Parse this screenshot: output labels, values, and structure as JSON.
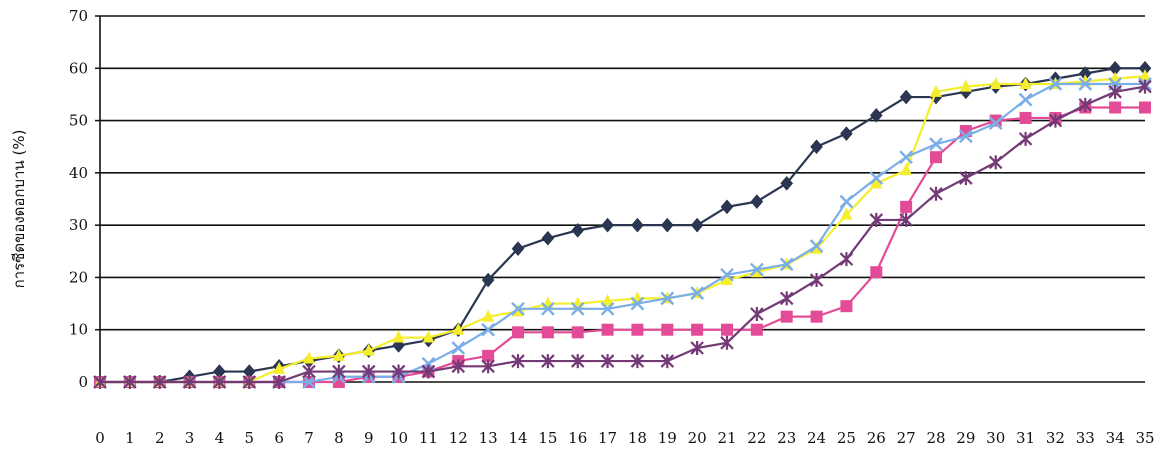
{
  "chart_data": {
    "type": "line",
    "ylabel": "การซีดของดอกบาน (%)",
    "xlabel": "",
    "ylim": [
      0,
      70
    ],
    "yticks": [
      0,
      10,
      20,
      30,
      40,
      50,
      60,
      70
    ],
    "grid": true,
    "x": [
      0,
      1,
      2,
      3,
      4,
      5,
      6,
      7,
      8,
      9,
      10,
      11,
      12,
      13,
      14,
      15,
      16,
      17,
      18,
      19,
      20,
      21,
      22,
      23,
      24,
      25,
      26,
      27,
      28,
      29,
      30,
      31,
      32,
      33,
      34,
      35
    ],
    "series": [
      {
        "color": "#2b3652",
        "marker": "diamond",
        "values": [
          0,
          0,
          0,
          1,
          2,
          2,
          3,
          4,
          5,
          6,
          7,
          8,
          10,
          19.5,
          25.5,
          27.5,
          29,
          30,
          30,
          30,
          30,
          33.5,
          34.5,
          38,
          45,
          47.5,
          51,
          54.5,
          54.5,
          55.5,
          56.5,
          57,
          58,
          59,
          60,
          60
        ]
      },
      {
        "color": "#e34b96",
        "marker": "square",
        "values": [
          0,
          0,
          0,
          0,
          0,
          0,
          0,
          0,
          0,
          1,
          1,
          2,
          4,
          5,
          9.5,
          9.5,
          9.5,
          10,
          10,
          10,
          10,
          10,
          10,
          12.5,
          12.5,
          14.5,
          21,
          33.5,
          43,
          48,
          50,
          50.5,
          50.5,
          52.5,
          52.5,
          52.5
        ]
      },
      {
        "color": "#f4ee2c",
        "marker": "triangle",
        "values": [
          0,
          0,
          0,
          0,
          0,
          0,
          2.5,
          4.5,
          5,
          6,
          8.5,
          8.5,
          10,
          12.5,
          13.5,
          15,
          15,
          15.5,
          16,
          16,
          17,
          19.5,
          21,
          22.5,
          25.5,
          32,
          38,
          40.5,
          55.5,
          56.5,
          57,
          57,
          57,
          57.5,
          58,
          58.5
        ]
      },
      {
        "color": "#7aaee8",
        "marker": "x",
        "values": [
          0,
          0,
          0,
          0,
          0,
          0,
          0,
          0,
          1,
          1,
          1,
          3.5,
          6.5,
          10,
          14,
          14,
          14,
          14,
          15,
          16,
          17,
          20.5,
          21.5,
          22.5,
          26,
          34.5,
          39,
          43,
          45.5,
          47,
          49.5,
          54,
          57,
          57,
          57,
          57
        ]
      },
      {
        "color": "#733a76",
        "marker": "star",
        "values": [
          0,
          0,
          0,
          0,
          0,
          0,
          0,
          2,
          2,
          2,
          2,
          2,
          3,
          3,
          4,
          4,
          4,
          4,
          4,
          4,
          6.5,
          7.5,
          13,
          16,
          19.5,
          23.5,
          31,
          31,
          36,
          39,
          42,
          46.5,
          50,
          53,
          55.5,
          56.5
        ]
      }
    ]
  }
}
